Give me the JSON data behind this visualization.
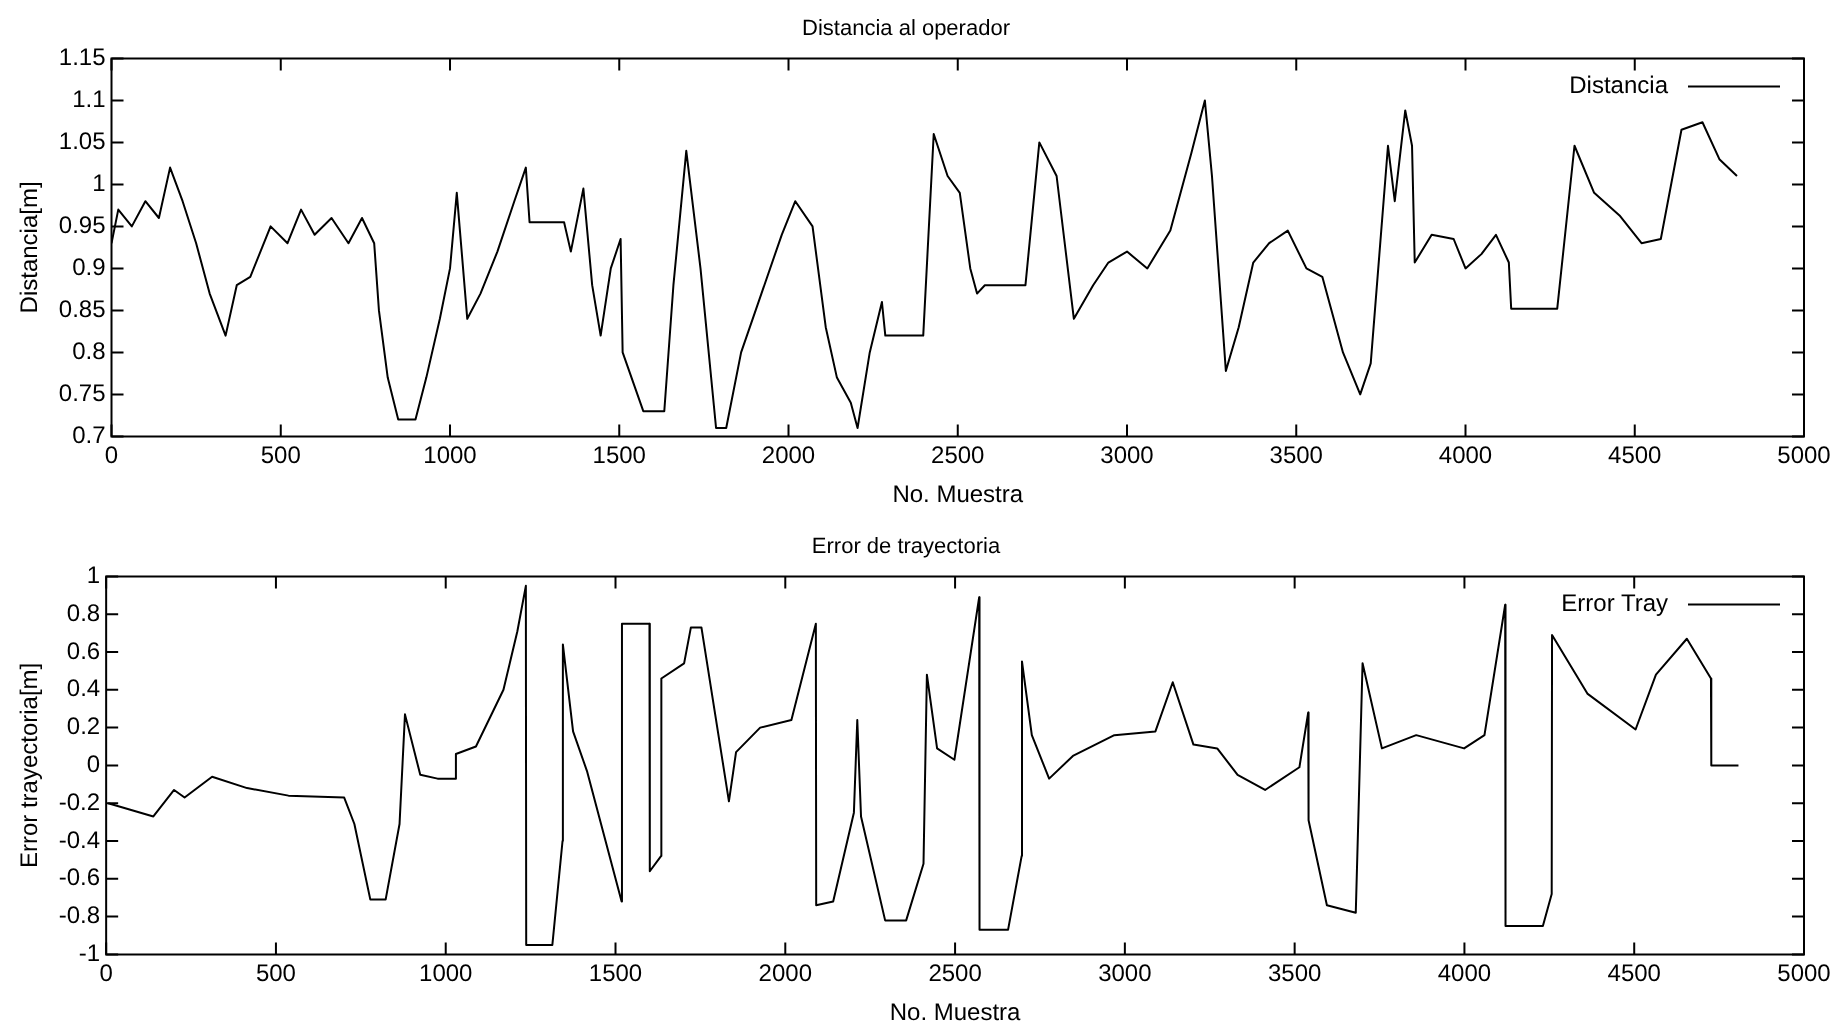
{
  "chart_data": [
    {
      "type": "line",
      "title": "Distancia al operador",
      "xlabel": "No. Muestra",
      "ylabel": "Distancia[m]",
      "legend": "top right",
      "marker": "none",
      "xlim": [
        0,
        5000
      ],
      "xticks": [
        0,
        500,
        1000,
        1500,
        2000,
        2500,
        3000,
        3500,
        4000,
        4500,
        5000
      ],
      "ylim": [
        0.7,
        1.15
      ],
      "yticks": [
        0.7,
        0.75,
        0.8,
        0.85,
        0.9,
        0.95,
        1,
        1.05,
        1.1,
        1.15
      ],
      "series": [
        {
          "name": "Distancia",
          "color": "#000000",
          "x": [
            0,
            20,
            60,
            100,
            140,
            173,
            210,
            250,
            290,
            337,
            370,
            410,
            470,
            520,
            560,
            600,
            650,
            700,
            740,
            776,
            790,
            816,
            847,
            898,
            930,
            970,
            1000,
            1020,
            1051,
            1090,
            1140,
            1190,
            1224,
            1235,
            1337,
            1357,
            1394,
            1420,
            1445,
            1475,
            1504,
            1510,
            1571,
            1633,
            1660,
            1698,
            1740,
            1786,
            1816,
            1860,
            1920,
            1980,
            2020,
            2071,
            2110,
            2143,
            2184,
            2204,
            2240,
            2276,
            2286,
            2398,
            2429,
            2470,
            2506,
            2537,
            2557,
            2580,
            2700,
            2741,
            2792,
            2843,
            2900,
            2945,
            3000,
            3060,
            3128,
            3190,
            3230,
            3251,
            3292,
            3330,
            3373,
            3420,
            3475,
            3530,
            3577,
            3638,
            3689,
            3720,
            3771,
            3791,
            3822,
            3842,
            3850,
            3900,
            3965,
            4000,
            4047,
            4090,
            4128,
            4135,
            4271,
            4322,
            4380,
            4455,
            4520,
            4577,
            4638,
            4700,
            4750,
            4802
          ],
          "values": [
            0.93,
            0.97,
            0.95,
            0.98,
            0.96,
            1.02,
            0.98,
            0.93,
            0.87,
            0.82,
            0.88,
            0.89,
            0.95,
            0.93,
            0.97,
            0.94,
            0.96,
            0.93,
            0.96,
            0.93,
            0.85,
            0.77,
            0.72,
            0.72,
            0.77,
            0.84,
            0.9,
            0.99,
            0.84,
            0.87,
            0.92,
            0.98,
            1.02,
            0.955,
            0.955,
            0.92,
            0.995,
            0.88,
            0.82,
            0.9,
            0.935,
            0.8,
            0.73,
            0.73,
            0.88,
            1.04,
            0.9,
            0.71,
            0.71,
            0.8,
            0.87,
            0.94,
            0.98,
            0.95,
            0.83,
            0.77,
            0.74,
            0.71,
            0.8,
            0.86,
            0.82,
            0.82,
            1.06,
            1.01,
            0.99,
            0.9,
            0.87,
            0.88,
            0.88,
            1.05,
            1.01,
            0.84,
            0.88,
            0.907,
            0.92,
            0.9,
            0.945,
            1.037,
            1.1,
            1.01,
            0.778,
            0.83,
            0.907,
            0.93,
            0.945,
            0.9,
            0.89,
            0.8,
            0.75,
            0.787,
            1.046,
            0.98,
            1.088,
            1.046,
            0.907,
            0.94,
            0.935,
            0.9,
            0.917,
            0.94,
            0.907,
            0.852,
            0.852,
            1.046,
            0.99,
            0.963,
            0.93,
            0.935,
            1.065,
            1.074,
            1.03,
            1.01
          ]
        }
      ]
    },
    {
      "type": "line",
      "title": "Error de trayectoria",
      "xlabel": "No. Muestra",
      "ylabel": "Error trayectoria[m]",
      "legend": "top right",
      "marker": "none",
      "xlim": [
        0,
        5000
      ],
      "xticks": [
        0,
        500,
        1000,
        1500,
        2000,
        2500,
        3000,
        3500,
        4000,
        4500,
        5000
      ],
      "ylim": [
        -1,
        1
      ],
      "yticks": [
        -1,
        -0.8,
        -0.6,
        -0.4,
        -0.2,
        0,
        0.2,
        0.4,
        0.6,
        0.8,
        1
      ],
      "series": [
        {
          "name": "Error Tray",
          "color": "#000000",
          "x": [
            6,
            139,
            200,
            231,
            312,
            415,
            537,
            701,
            731,
            778,
            823,
            864,
            880,
            925,
            976,
            1028,
            1030,
            1089,
            1170,
            1211,
            1236,
            1237,
            1314,
            1344,
            1345,
            1375,
            1416,
            1518,
            1519,
            1600,
            1601,
            1634,
            1635,
            1702,
            1722,
            1753,
            1834,
            1855,
            1926,
            2018,
            2090,
            2091,
            2141,
            2202,
            2212,
            2223,
            2294,
            2356,
            2407,
            2417,
            2447,
            2498,
            2571,
            2572,
            2656,
            2696,
            2697,
            2726,
            2777,
            2847,
            2969,
            3090,
            3141,
            3202,
            3272,
            3332,
            3413,
            3514,
            3540,
            3541,
            3595,
            3680,
            3700,
            3757,
            3858,
            3999,
            4059,
            4120,
            4121,
            4231,
            4257,
            4258,
            4362,
            4504,
            4564,
            4655,
            4726,
            4727,
            4807
          ],
          "values": [
            -0.2,
            -0.27,
            -0.13,
            -0.17,
            -0.06,
            -0.12,
            -0.16,
            -0.17,
            -0.31,
            -0.71,
            -0.71,
            -0.31,
            0.27,
            -0.05,
            -0.07,
            -0.07,
            0.06,
            0.1,
            0.4,
            0.71,
            0.95,
            -0.95,
            -0.95,
            -0.4,
            0.64,
            0.18,
            -0.03,
            -0.72,
            0.75,
            0.75,
            -0.56,
            -0.48,
            0.46,
            0.54,
            0.73,
            0.73,
            -0.19,
            0.07,
            0.2,
            0.24,
            0.75,
            -0.74,
            -0.72,
            -0.25,
            0.24,
            -0.27,
            -0.82,
            -0.82,
            -0.52,
            0.48,
            0.09,
            0.03,
            0.89,
            -0.87,
            -0.87,
            -0.48,
            0.55,
            0.16,
            -0.07,
            0.05,
            0.16,
            0.18,
            0.44,
            0.11,
            0.09,
            -0.05,
            -0.13,
            -0.01,
            0.28,
            -0.29,
            -0.74,
            -0.78,
            0.54,
            0.09,
            0.16,
            0.09,
            0.16,
            0.85,
            -0.85,
            -0.85,
            -0.68,
            0.69,
            0.38,
            0.19,
            0.48,
            0.67,
            0.46,
            0,
            0
          ]
        }
      ]
    }
  ]
}
